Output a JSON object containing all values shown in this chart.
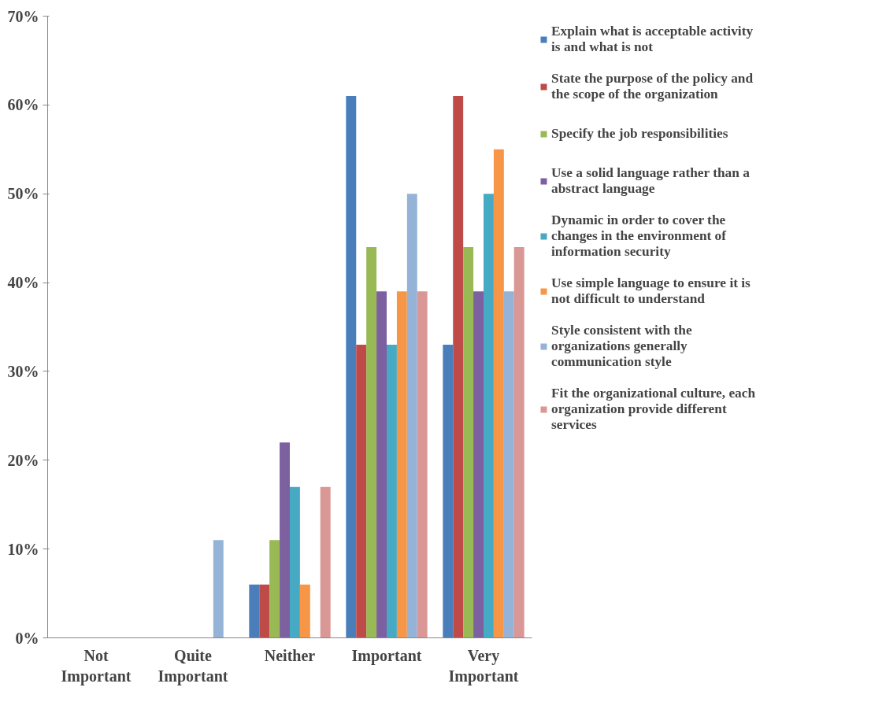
{
  "chart_data": {
    "type": "bar",
    "categories": [
      "Not Important",
      "Quite Important",
      "Neither",
      "Important",
      "Very Important"
    ],
    "ylim": [
      0,
      70
    ],
    "yticks": [
      {
        "value": 0,
        "label": "0%"
      },
      {
        "value": 10,
        "label": "10%"
      },
      {
        "value": 20,
        "label": "20%"
      },
      {
        "value": 30,
        "label": "30%"
      },
      {
        "value": 40,
        "label": "40%"
      },
      {
        "value": 50,
        "label": "50%"
      },
      {
        "value": 60,
        "label": "60%"
      },
      {
        "value": 70,
        "label": "70%"
      }
    ],
    "grid": false,
    "legend": "right",
    "series": [
      {
        "name": "Explain what is acceptable activity is and what is not",
        "color": "#4a7ebb",
        "values": [
          0,
          0,
          6,
          61,
          33
        ]
      },
      {
        "name": "State the purpose of the policy and the scope of the organization",
        "color": "#be4b48",
        "values": [
          0,
          0,
          6,
          33,
          61
        ]
      },
      {
        "name": "Specify the job responsibilities",
        "color": "#98b954",
        "values": [
          0,
          0,
          11,
          44,
          44
        ]
      },
      {
        "name": "Use a solid language rather than a abstract language",
        "color": "#7d60a0",
        "values": [
          0,
          0,
          22,
          39,
          39
        ]
      },
      {
        "name": "Dynamic in order to cover the changes in the environment of information security",
        "color": "#46aac5",
        "values": [
          0,
          0,
          17,
          33,
          50
        ]
      },
      {
        "name": "Use simple language to ensure it is not difficult to understand",
        "color": "#f79646",
        "values": [
          0,
          0,
          6,
          39,
          55
        ]
      },
      {
        "name": "Style consistent with the organizations generally communication style",
        "color": "#95b3d7",
        "values": [
          0,
          11,
          0,
          50,
          39
        ]
      },
      {
        "name": "Fit the organizational culture, each organization provide different services",
        "color": "#d99795",
        "values": [
          0,
          0,
          17,
          39,
          44
        ]
      }
    ]
  }
}
